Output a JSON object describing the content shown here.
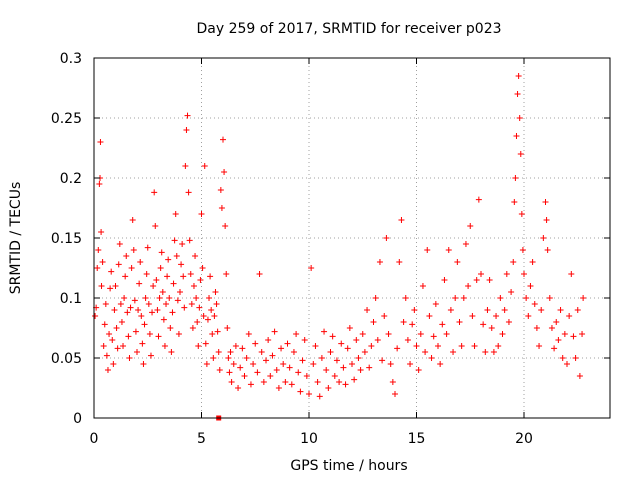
{
  "chart_data": {
    "type": "scatter",
    "title": "Day 259 of 2017, SRMTID for receiver p023",
    "xlabel": "GPS time / hours",
    "ylabel": "SRMTID / TECUs",
    "xlim": [
      0,
      24
    ],
    "ylim": [
      0,
      0.3
    ],
    "xticks": [
      0,
      5,
      10,
      15,
      20
    ],
    "xtick_labels": [
      "0",
      "5",
      "10",
      "15",
      "20"
    ],
    "yticks": [
      0,
      0.05,
      0.1,
      0.15,
      0.2,
      0.25,
      0.3
    ],
    "ytick_labels": [
      "0",
      "0.05",
      "0.1",
      "0.15",
      "0.2",
      "0.25",
      "0.3"
    ],
    "grid": true,
    "marker": "plus",
    "color": "#ff0000",
    "series": [
      {
        "name": "p023",
        "points": [
          [
            0.05,
            0.085
          ],
          [
            0.1,
            0.092
          ],
          [
            0.15,
            0.125
          ],
          [
            0.2,
            0.14
          ],
          [
            0.25,
            0.195
          ],
          [
            0.28,
            0.2
          ],
          [
            0.3,
            0.23
          ],
          [
            0.33,
            0.155
          ],
          [
            0.35,
            0.11
          ],
          [
            0.4,
            0.13
          ],
          [
            0.45,
            0.06
          ],
          [
            0.5,
            0.078
          ],
          [
            0.55,
            0.095
          ],
          [
            0.6,
            0.052
          ],
          [
            0.65,
            0.04
          ],
          [
            0.7,
            0.07
          ],
          [
            0.75,
            0.108
          ],
          [
            0.8,
            0.122
          ],
          [
            0.85,
            0.065
          ],
          [
            0.9,
            0.045
          ],
          [
            0.95,
            0.09
          ],
          [
            1.0,
            0.11
          ],
          [
            1.05,
            0.075
          ],
          [
            1.1,
            0.058
          ],
          [
            1.15,
            0.128
          ],
          [
            1.2,
            0.145
          ],
          [
            1.25,
            0.095
          ],
          [
            1.3,
            0.08
          ],
          [
            1.35,
            0.06
          ],
          [
            1.4,
            0.1
          ],
          [
            1.45,
            0.118
          ],
          [
            1.5,
            0.135
          ],
          [
            1.55,
            0.088
          ],
          [
            1.6,
            0.068
          ],
          [
            1.65,
            0.05
          ],
          [
            1.7,
            0.092
          ],
          [
            1.75,
            0.125
          ],
          [
            1.8,
            0.165
          ],
          [
            1.85,
            0.14
          ],
          [
            1.9,
            0.098
          ],
          [
            1.95,
            0.072
          ],
          [
            2.0,
            0.055
          ],
          [
            2.05,
            0.09
          ],
          [
            2.1,
            0.112
          ],
          [
            2.15,
            0.13
          ],
          [
            2.2,
            0.085
          ],
          [
            2.25,
            0.062
          ],
          [
            2.3,
            0.045
          ],
          [
            2.35,
            0.078
          ],
          [
            2.4,
            0.1
          ],
          [
            2.45,
            0.12
          ],
          [
            2.5,
            0.142
          ],
          [
            2.55,
            0.095
          ],
          [
            2.6,
            0.07
          ],
          [
            2.65,
            0.052
          ],
          [
            2.7,
            0.088
          ],
          [
            2.75,
            0.11
          ],
          [
            2.8,
            0.188
          ],
          [
            2.85,
            0.16
          ],
          [
            2.9,
            0.115
          ],
          [
            2.95,
            0.09
          ],
          [
            3.0,
            0.068
          ],
          [
            3.05,
            0.1
          ],
          [
            3.1,
            0.125
          ],
          [
            3.15,
            0.138
          ],
          [
            3.2,
            0.105
          ],
          [
            3.25,
            0.082
          ],
          [
            3.3,
            0.06
          ],
          [
            3.35,
            0.095
          ],
          [
            3.4,
            0.118
          ],
          [
            3.45,
            0.132
          ],
          [
            3.5,
            0.1
          ],
          [
            3.55,
            0.075
          ],
          [
            3.6,
            0.055
          ],
          [
            3.65,
            0.088
          ],
          [
            3.7,
            0.112
          ],
          [
            3.75,
            0.148
          ],
          [
            3.8,
            0.17
          ],
          [
            3.85,
            0.135
          ],
          [
            3.9,
            0.098
          ],
          [
            3.95,
            0.07
          ],
          [
            4.0,
            0.105
          ],
          [
            4.05,
            0.128
          ],
          [
            4.1,
            0.145
          ],
          [
            4.15,
            0.118
          ],
          [
            4.2,
            0.092
          ],
          [
            4.25,
            0.21
          ],
          [
            4.3,
            0.24
          ],
          [
            4.35,
            0.252
          ],
          [
            4.4,
            0.188
          ],
          [
            4.45,
            0.148
          ],
          [
            4.5,
            0.12
          ],
          [
            4.55,
            0.095
          ],
          [
            4.6,
            0.075
          ],
          [
            4.65,
            0.11
          ],
          [
            4.7,
            0.135
          ],
          [
            4.75,
            0.1
          ],
          [
            4.8,
            0.08
          ],
          [
            4.85,
            0.06
          ],
          [
            4.9,
            0.092
          ],
          [
            4.95,
            0.115
          ],
          [
            5.0,
            0.17
          ],
          [
            5.05,
            0.125
          ],
          [
            5.1,
            0.085
          ],
          [
            5.15,
            0.21
          ],
          [
            5.2,
            0.062
          ],
          [
            5.25,
            0.045
          ],
          [
            5.3,
            0.082
          ],
          [
            5.35,
            0.1
          ],
          [
            5.4,
            0.118
          ],
          [
            5.45,
            0.09
          ],
          [
            5.5,
            0.07
          ],
          [
            5.55,
            0.05
          ],
          [
            5.6,
            0.085
          ],
          [
            5.65,
            0.105
          ],
          [
            5.7,
            0.095
          ],
          [
            5.75,
            0.072
          ],
          [
            5.8,
            0.055
          ],
          [
            5.85,
            0.04
          ],
          [
            5.9,
            0.19
          ],
          [
            5.95,
            0.175
          ],
          [
            6.0,
            0.232
          ],
          [
            6.05,
            0.205
          ],
          [
            6.1,
            0.16
          ],
          [
            6.15,
            0.12
          ],
          [
            6.2,
            0.075
          ],
          [
            6.25,
            0.05
          ],
          [
            6.3,
            0.038
          ],
          [
            6.35,
            0.055
          ],
          [
            6.4,
            0.03
          ],
          [
            6.5,
            0.045
          ],
          [
            6.6,
            0.06
          ],
          [
            6.7,
            0.025
          ],
          [
            6.8,
            0.042
          ],
          [
            6.9,
            0.058
          ],
          [
            7.0,
            0.035
          ],
          [
            7.1,
            0.05
          ],
          [
            7.2,
            0.07
          ],
          [
            7.3,
            0.028
          ],
          [
            7.4,
            0.045
          ],
          [
            7.5,
            0.062
          ],
          [
            7.6,
            0.038
          ],
          [
            7.7,
            0.12
          ],
          [
            7.8,
            0.055
          ],
          [
            7.9,
            0.03
          ],
          [
            8.0,
            0.048
          ],
          [
            8.1,
            0.065
          ],
          [
            8.2,
            0.035
          ],
          [
            8.3,
            0.052
          ],
          [
            8.4,
            0.072
          ],
          [
            8.5,
            0.04
          ],
          [
            8.6,
            0.025
          ],
          [
            8.7,
            0.058
          ],
          [
            8.8,
            0.045
          ],
          [
            8.9,
            0.03
          ],
          [
            9.0,
            0.062
          ],
          [
            9.1,
            0.042
          ],
          [
            9.2,
            0.028
          ],
          [
            9.3,
            0.055
          ],
          [
            9.4,
            0.07
          ],
          [
            9.5,
            0.038
          ],
          [
            9.6,
            0.022
          ],
          [
            9.7,
            0.048
          ],
          [
            9.8,
            0.065
          ],
          [
            9.9,
            0.035
          ],
          [
            10.0,
            0.02
          ],
          [
            10.1,
            0.125
          ],
          [
            10.2,
            0.045
          ],
          [
            10.3,
            0.06
          ],
          [
            10.4,
            0.03
          ],
          [
            10.5,
            0.018
          ],
          [
            10.6,
            0.05
          ],
          [
            10.7,
            0.072
          ],
          [
            10.8,
            0.04
          ],
          [
            10.9,
            0.025
          ],
          [
            11.0,
            0.055
          ],
          [
            11.1,
            0.068
          ],
          [
            11.2,
            0.035
          ],
          [
            11.3,
            0.048
          ],
          [
            11.4,
            0.03
          ],
          [
            11.5,
            0.062
          ],
          [
            11.6,
            0.042
          ],
          [
            11.7,
            0.028
          ],
          [
            11.8,
            0.058
          ],
          [
            11.9,
            0.075
          ],
          [
            12.0,
            0.045
          ],
          [
            12.1,
            0.032
          ],
          [
            12.2,
            0.065
          ],
          [
            12.3,
            0.05
          ],
          [
            12.4,
            0.04
          ],
          [
            12.5,
            0.07
          ],
          [
            12.6,
            0.055
          ],
          [
            12.7,
            0.09
          ],
          [
            12.8,
            0.042
          ],
          [
            12.9,
            0.06
          ],
          [
            13.0,
            0.08
          ],
          [
            13.1,
            0.1
          ],
          [
            13.2,
            0.065
          ],
          [
            13.3,
            0.13
          ],
          [
            13.4,
            0.048
          ],
          [
            13.5,
            0.085
          ],
          [
            13.6,
            0.15
          ],
          [
            13.7,
            0.07
          ],
          [
            13.8,
            0.045
          ],
          [
            13.9,
            0.03
          ],
          [
            14.0,
            0.02
          ],
          [
            14.1,
            0.058
          ],
          [
            14.2,
            0.13
          ],
          [
            14.3,
            0.165
          ],
          [
            14.4,
            0.08
          ],
          [
            14.5,
            0.1
          ],
          [
            14.6,
            0.065
          ],
          [
            14.7,
            0.045
          ],
          [
            14.8,
            0.078
          ],
          [
            14.9,
            0.09
          ],
          [
            15.0,
            0.06
          ],
          [
            15.1,
            0.04
          ],
          [
            15.2,
            0.07
          ],
          [
            15.3,
            0.11
          ],
          [
            15.4,
            0.055
          ],
          [
            15.5,
            0.14
          ],
          [
            15.6,
            0.085
          ],
          [
            15.7,
            0.05
          ],
          [
            15.8,
            0.068
          ],
          [
            15.9,
            0.095
          ],
          [
            16.0,
            0.06
          ],
          [
            16.1,
            0.045
          ],
          [
            16.2,
            0.078
          ],
          [
            16.3,
            0.115
          ],
          [
            16.4,
            0.07
          ],
          [
            16.5,
            0.14
          ],
          [
            16.6,
            0.09
          ],
          [
            16.7,
            0.055
          ],
          [
            16.8,
            0.1
          ],
          [
            16.9,
            0.13
          ],
          [
            17.0,
            0.08
          ],
          [
            17.1,
            0.06
          ],
          [
            17.2,
            0.1
          ],
          [
            17.3,
            0.145
          ],
          [
            17.4,
            0.11
          ],
          [
            17.5,
            0.16
          ],
          [
            17.6,
            0.085
          ],
          [
            17.7,
            0.06
          ],
          [
            17.8,
            0.115
          ],
          [
            17.9,
            0.182
          ],
          [
            18.0,
            0.12
          ],
          [
            18.1,
            0.078
          ],
          [
            18.2,
            0.055
          ],
          [
            18.3,
            0.09
          ],
          [
            18.4,
            0.115
          ],
          [
            18.5,
            0.075
          ],
          [
            18.6,
            0.055
          ],
          [
            18.7,
            0.085
          ],
          [
            18.8,
            0.06
          ],
          [
            18.9,
            0.1
          ],
          [
            19.0,
            0.07
          ],
          [
            19.1,
            0.09
          ],
          [
            19.2,
            0.12
          ],
          [
            19.3,
            0.08
          ],
          [
            19.4,
            0.105
          ],
          [
            19.5,
            0.13
          ],
          [
            19.55,
            0.18
          ],
          [
            19.6,
            0.2
          ],
          [
            19.65,
            0.235
          ],
          [
            19.7,
            0.27
          ],
          [
            19.75,
            0.285
          ],
          [
            19.8,
            0.25
          ],
          [
            19.85,
            0.22
          ],
          [
            19.9,
            0.17
          ],
          [
            19.95,
            0.14
          ],
          [
            20.0,
            0.12
          ],
          [
            20.1,
            0.1
          ],
          [
            20.2,
            0.085
          ],
          [
            20.3,
            0.11
          ],
          [
            20.4,
            0.13
          ],
          [
            20.5,
            0.095
          ],
          [
            20.6,
            0.075
          ],
          [
            20.7,
            0.06
          ],
          [
            20.8,
            0.09
          ],
          [
            20.9,
            0.15
          ],
          [
            21.0,
            0.18
          ],
          [
            21.05,
            0.165
          ],
          [
            21.1,
            0.14
          ],
          [
            21.2,
            0.1
          ],
          [
            21.3,
            0.075
          ],
          [
            21.4,
            0.058
          ],
          [
            21.5,
            0.08
          ],
          [
            21.6,
            0.065
          ],
          [
            21.7,
            0.09
          ],
          [
            21.8,
            0.05
          ],
          [
            21.9,
            0.07
          ],
          [
            22.0,
            0.045
          ],
          [
            22.1,
            0.085
          ],
          [
            22.2,
            0.12
          ],
          [
            22.3,
            0.068
          ],
          [
            22.4,
            0.05
          ],
          [
            22.5,
            0.09
          ],
          [
            22.6,
            0.035
          ],
          [
            22.7,
            0.07
          ],
          [
            22.75,
            0.1
          ]
        ]
      }
    ],
    "outlier": {
      "x": 5.8,
      "y": 0.0,
      "marker": "square"
    }
  }
}
